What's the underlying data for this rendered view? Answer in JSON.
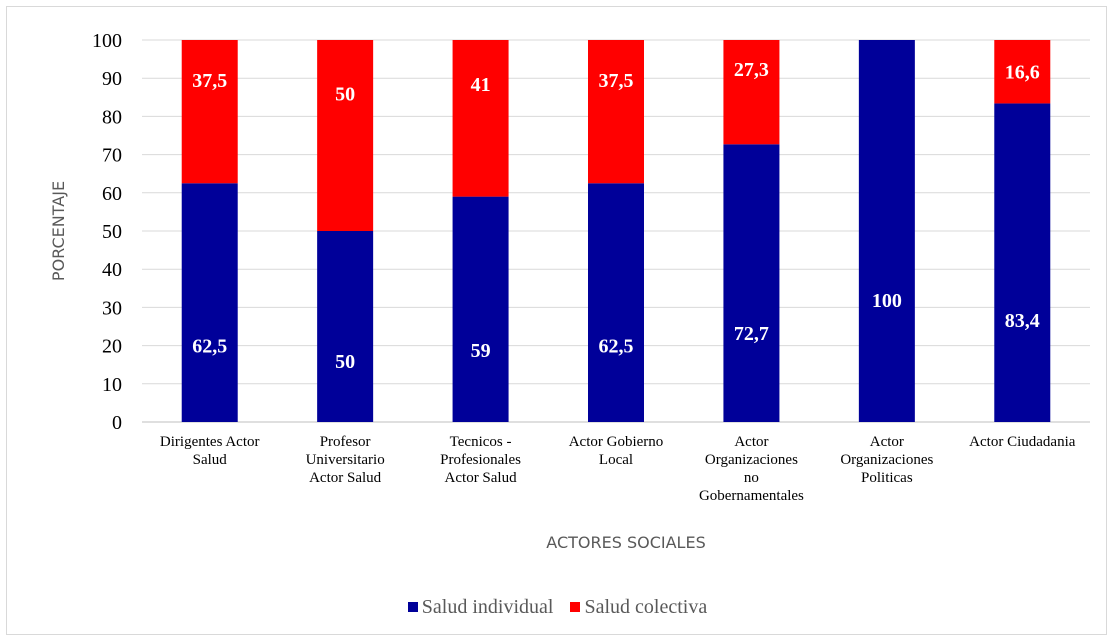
{
  "chart_data": {
    "type": "bar",
    "stacked": true,
    "categories": [
      [
        "Dirigentes Actor",
        "Salud"
      ],
      [
        "Profesor",
        "Universitario",
        "Actor Salud"
      ],
      [
        "Tecnicos -",
        "Profesionales",
        "Actor Salud"
      ],
      [
        "Actor Gobierno",
        "Local"
      ],
      [
        "Actor",
        "Organizaciones",
        "no",
        "Gobernamentales"
      ],
      [
        "Actor",
        "Organizaciones",
        "Politicas"
      ],
      [
        "Actor Ciudadania"
      ]
    ],
    "series": [
      {
        "name": "Salud individual",
        "color": "#000099",
        "values": [
          62.5,
          50,
          59,
          62.5,
          72.7,
          100,
          83.4
        ],
        "labels": [
          "62,5",
          "50",
          "59",
          "62,5",
          "72,7",
          "100",
          "83,4"
        ]
      },
      {
        "name": "Salud colectiva",
        "color": "#ff0000",
        "values": [
          37.5,
          50,
          41,
          37.5,
          27.3,
          0,
          16.6
        ],
        "labels": [
          "37,5",
          "50",
          "41",
          "37,5",
          "27,3",
          "",
          "16,6"
        ]
      }
    ],
    "xlabel": "ACTORES SOCIALES",
    "ylabel": "PORCENTAJE",
    "ylim": [
      0,
      100
    ],
    "yticks": [
      0,
      10,
      20,
      30,
      40,
      50,
      60,
      70,
      80,
      90,
      100
    ],
    "grid": true,
    "legend": "bottom"
  }
}
